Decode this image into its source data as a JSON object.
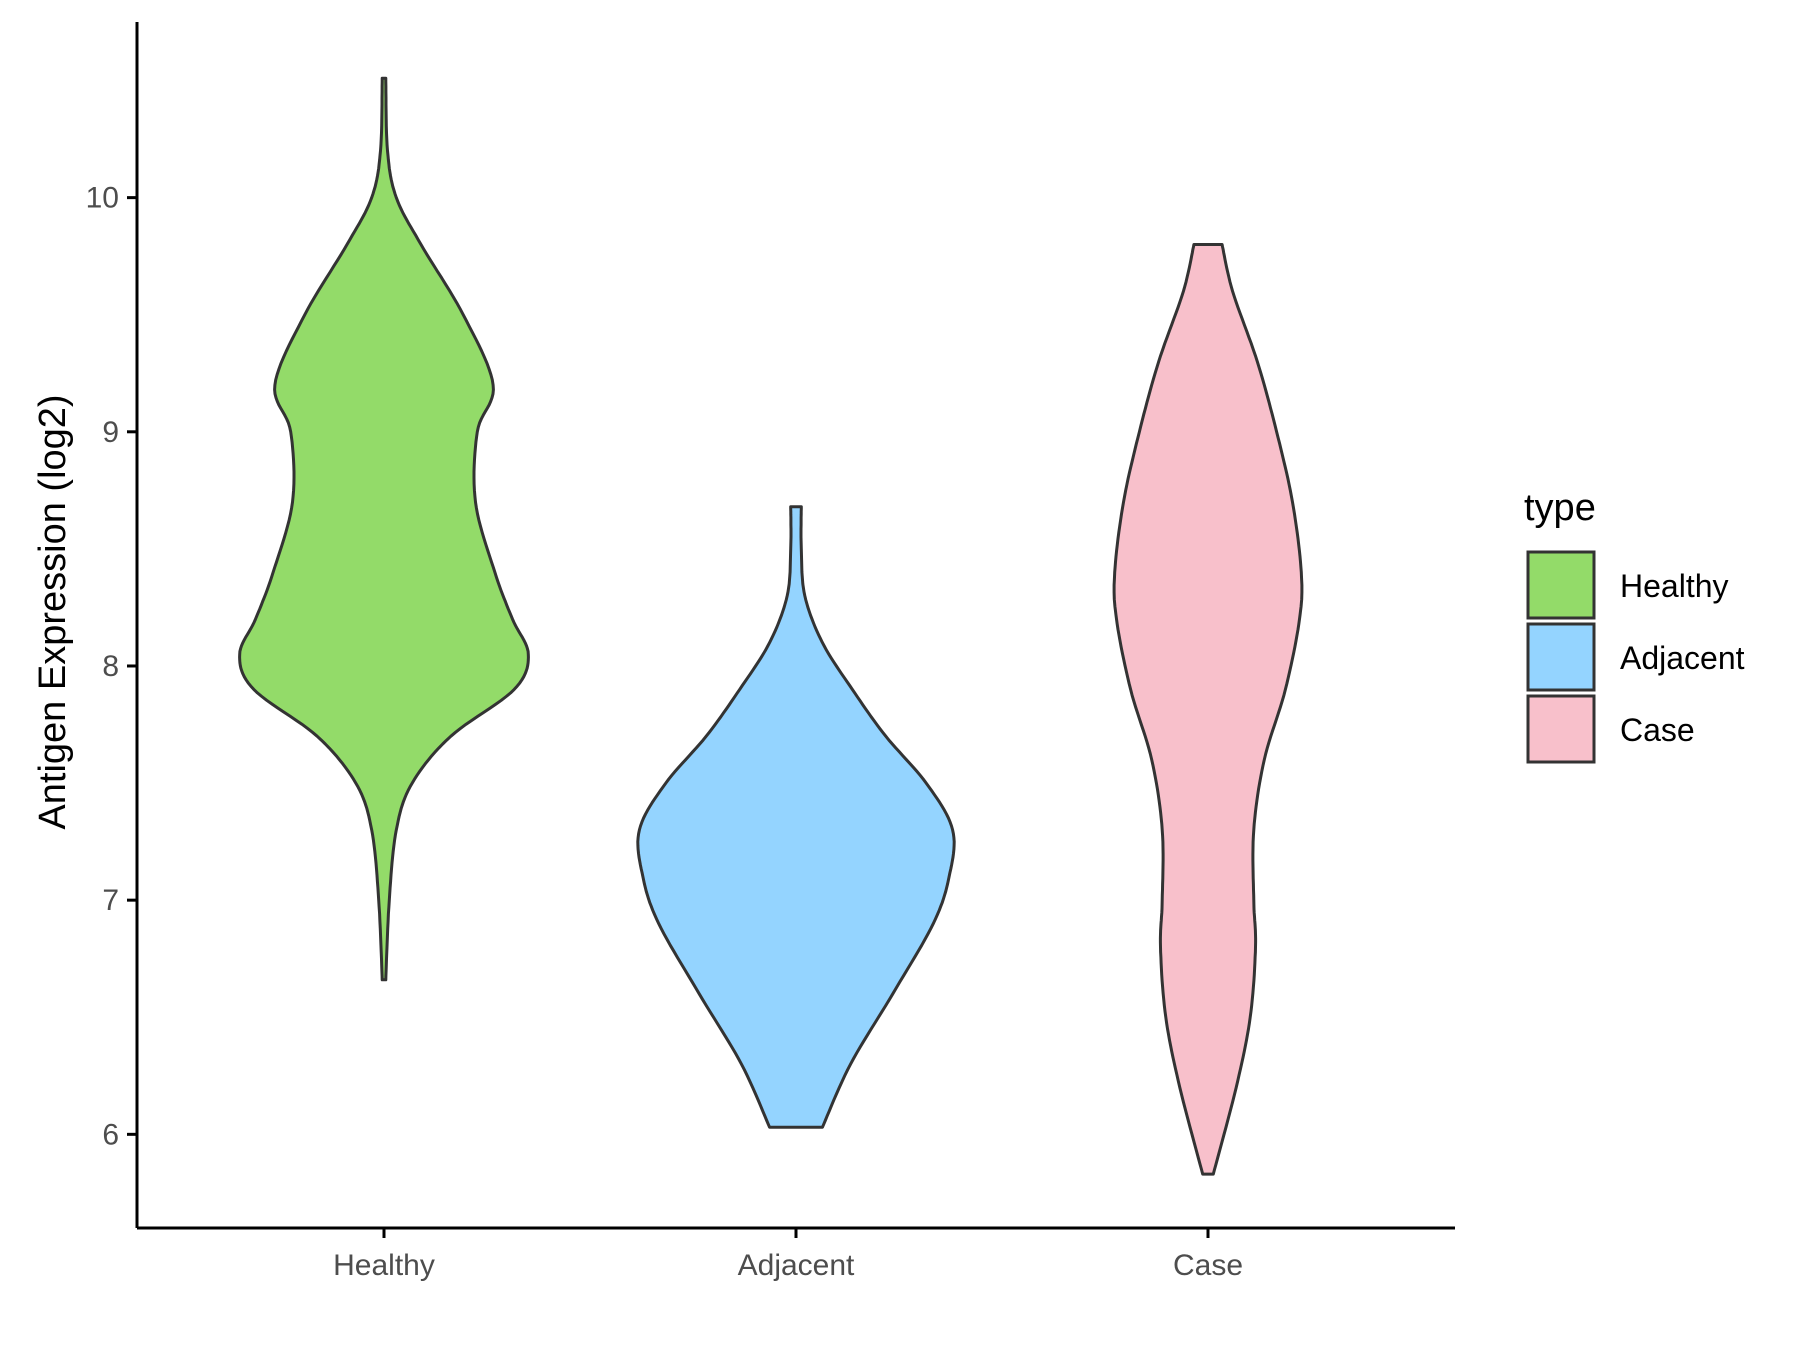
{
  "chart_data": {
    "type": "violin",
    "ylabel": "Antigen Expression (log2)",
    "xlabel": "",
    "ylim": [
      5.6,
      10.75
    ],
    "yticks": [
      6,
      7,
      8,
      9,
      10
    ],
    "categories": [
      "Healthy",
      "Adjacent",
      "Case"
    ],
    "grid": false,
    "legend": {
      "title": "type",
      "placement": "right",
      "entries": [
        "Healthy",
        "Adjacent",
        "Case"
      ]
    },
    "series": [
      {
        "name": "Healthy",
        "color": "#93DB69",
        "min": 6.66,
        "max": 10.51,
        "profile": [
          [
            6.66,
            0.01
          ],
          [
            7.0,
            0.03
          ],
          [
            7.3,
            0.07
          ],
          [
            7.5,
            0.16
          ],
          [
            7.7,
            0.38
          ],
          [
            7.9,
            0.74
          ],
          [
            8.05,
            0.82
          ],
          [
            8.2,
            0.73
          ],
          [
            8.4,
            0.63
          ],
          [
            8.7,
            0.52
          ],
          [
            9.0,
            0.53
          ],
          [
            9.2,
            0.62
          ],
          [
            9.5,
            0.45
          ],
          [
            9.8,
            0.21
          ],
          [
            10.0,
            0.07
          ],
          [
            10.2,
            0.02
          ],
          [
            10.51,
            0.01
          ]
        ]
      },
      {
        "name": "Adjacent",
        "color": "#94D4FF",
        "min": 6.03,
        "max": 8.68,
        "profile": [
          [
            6.03,
            0.15
          ],
          [
            6.3,
            0.31
          ],
          [
            6.6,
            0.55
          ],
          [
            6.9,
            0.78
          ],
          [
            7.1,
            0.87
          ],
          [
            7.3,
            0.89
          ],
          [
            7.5,
            0.74
          ],
          [
            7.7,
            0.51
          ],
          [
            7.9,
            0.32
          ],
          [
            8.1,
            0.15
          ],
          [
            8.3,
            0.05
          ],
          [
            8.5,
            0.03
          ],
          [
            8.68,
            0.03
          ]
        ]
      },
      {
        "name": "Case",
        "color": "#F8C0CB",
        "min": 5.83,
        "max": 9.8,
        "profile": [
          [
            5.83,
            0.03
          ],
          [
            6.2,
            0.16
          ],
          [
            6.5,
            0.24
          ],
          [
            6.8,
            0.27
          ],
          [
            7.0,
            0.26
          ],
          [
            7.3,
            0.26
          ],
          [
            7.6,
            0.32
          ],
          [
            7.9,
            0.44
          ],
          [
            8.2,
            0.52
          ],
          [
            8.4,
            0.53
          ],
          [
            8.7,
            0.48
          ],
          [
            9.0,
            0.39
          ],
          [
            9.3,
            0.28
          ],
          [
            9.6,
            0.14
          ],
          [
            9.8,
            0.08
          ]
        ]
      }
    ]
  }
}
